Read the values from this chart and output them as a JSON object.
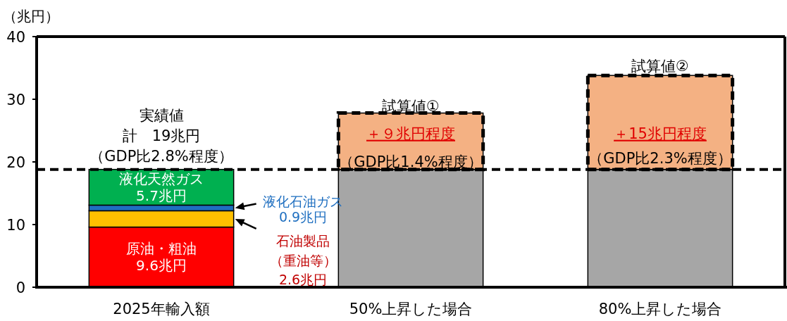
{
  "chart_data": {
    "type": "bar",
    "stacked": true,
    "ylabel": "（兆円）",
    "categories": [
      "2025年輸入額",
      "50%上昇した場合",
      "80%上昇した場合"
    ],
    "ylim": [
      0,
      40
    ],
    "yticks": [
      0,
      10,
      20,
      30,
      40
    ],
    "series": [
      {
        "name": "原油・粗油",
        "color": "#ff0000",
        "values": [
          9.6,
          null,
          null
        ],
        "value_labels": [
          "9.6兆円",
          null,
          null
        ]
      },
      {
        "color": "#ffc000",
        "values": [
          2.6,
          null,
          null
        ]
      },
      {
        "color": "#1f6fc0",
        "values": [
          0.9,
          null,
          null
        ]
      },
      {
        "name": "液化天然ガス",
        "color": "#00b050",
        "values": [
          5.7,
          null,
          null
        ],
        "value_labels": [
          "5.7兆円",
          null,
          null
        ]
      },
      {
        "color": "#a6a6a6",
        "values": [
          null,
          18.8,
          18.8
        ]
      },
      {
        "color": "#f4b183",
        "values": [
          null,
          9,
          15
        ],
        "value_labels": [
          null,
          "＋９兆円程度",
          "＋15兆円程度"
        ],
        "line_style": "dashed"
      }
    ],
    "ref_lines": [
      {
        "axis": "y",
        "value": 18.8,
        "line_style": "dashed",
        "color": "#000000"
      }
    ],
    "annotations": [
      "実績値",
      "計　19兆円",
      "（GDP比2.8%程度）",
      "試算値①",
      "（GDP比1.4%程度）",
      "試算値②",
      "（GDP比2.3%程度）",
      "液化石油ガス",
      "0.9兆円",
      "石油製品",
      "（重油等）",
      "2.6兆円"
    ]
  }
}
